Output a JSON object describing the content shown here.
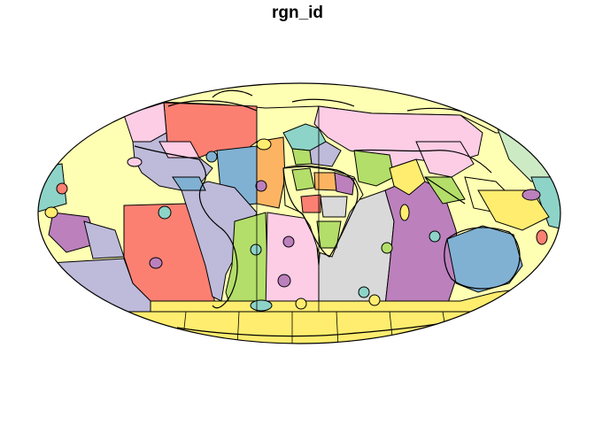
{
  "title": "rgn_id",
  "palette": {
    "teal": "#8DD3C7",
    "yellow": "#FFFFB3",
    "lavender": "#BEBADA",
    "salmon": "#FB8072",
    "blue": "#80B1D3",
    "orange": "#FDB462",
    "green": "#B3DE69",
    "pink": "#FCCDE5",
    "gray": "#D9D9D9",
    "purple": "#BC80BD",
    "mint": "#CCEBC5",
    "gold": "#FFED6F"
  },
  "projection": "mollweide"
}
